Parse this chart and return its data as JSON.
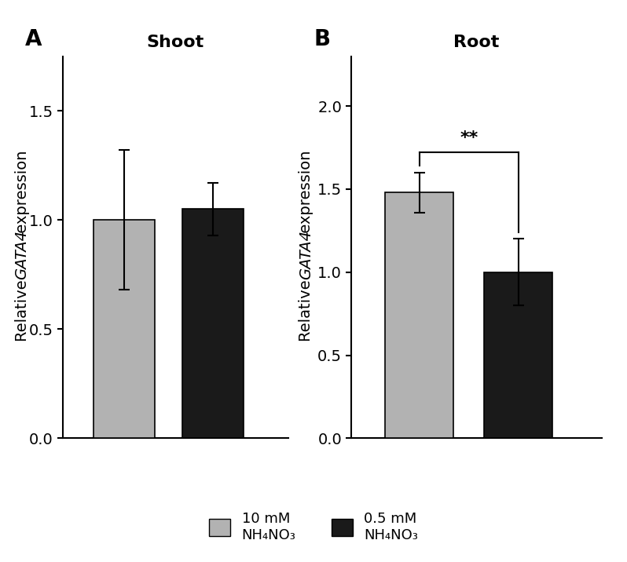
{
  "shoot": {
    "title": "Shoot",
    "panel_label": "A",
    "values": [
      1.0,
      1.05
    ],
    "errors": [
      0.32,
      0.12
    ],
    "ylim": [
      0,
      1.75
    ],
    "yticks": [
      0.0,
      0.5,
      1.0,
      1.5
    ]
  },
  "root": {
    "title": "Root",
    "panel_label": "B",
    "values": [
      1.48,
      1.0
    ],
    "errors": [
      0.12,
      0.2
    ],
    "ylim": [
      0,
      2.3
    ],
    "yticks": [
      0.0,
      0.5,
      1.0,
      1.5,
      2.0
    ],
    "significance": "**"
  },
  "bar_colors": [
    "#b2b2b2",
    "#1a1a1a"
  ],
  "bar_width": 0.45,
  "bar_positions": [
    1.0,
    1.65
  ],
  "legend": {
    "labels": [
      "10 mM\nNH₄NO₃",
      "0.5 mM\nNH₄NO₃"
    ],
    "colors": [
      "#b2b2b2",
      "#1a1a1a"
    ]
  },
  "ylabel": "Relative GATA4 expression",
  "figsize": [
    7.98,
    7.16
  ],
  "dpi": 100
}
